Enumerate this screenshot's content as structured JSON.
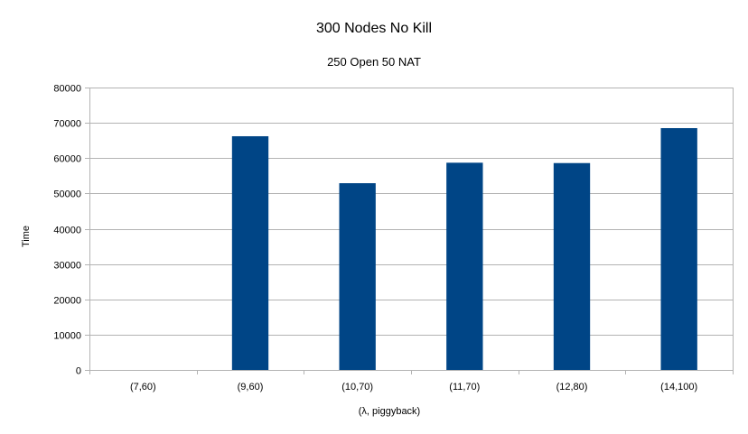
{
  "chart_data": {
    "type": "bar",
    "title": "300 Nodes No Kill",
    "subtitle": "250 Open 50 NAT",
    "xlabel": "(λ, piggyback)",
    "ylabel": "Time",
    "categories": [
      "(7,60)",
      "(9,60)",
      "(10,70)",
      "(11,70)",
      "(12,80)",
      "(14,100)"
    ],
    "values": [
      0,
      66200,
      52900,
      58700,
      58600,
      68500
    ],
    "ylim": [
      0,
      80000
    ],
    "yticks": [
      0,
      10000,
      20000,
      30000,
      40000,
      50000,
      60000,
      70000,
      80000
    ],
    "grid": true,
    "bar_color": "#004586",
    "grid_color": "#b3b3b3"
  }
}
